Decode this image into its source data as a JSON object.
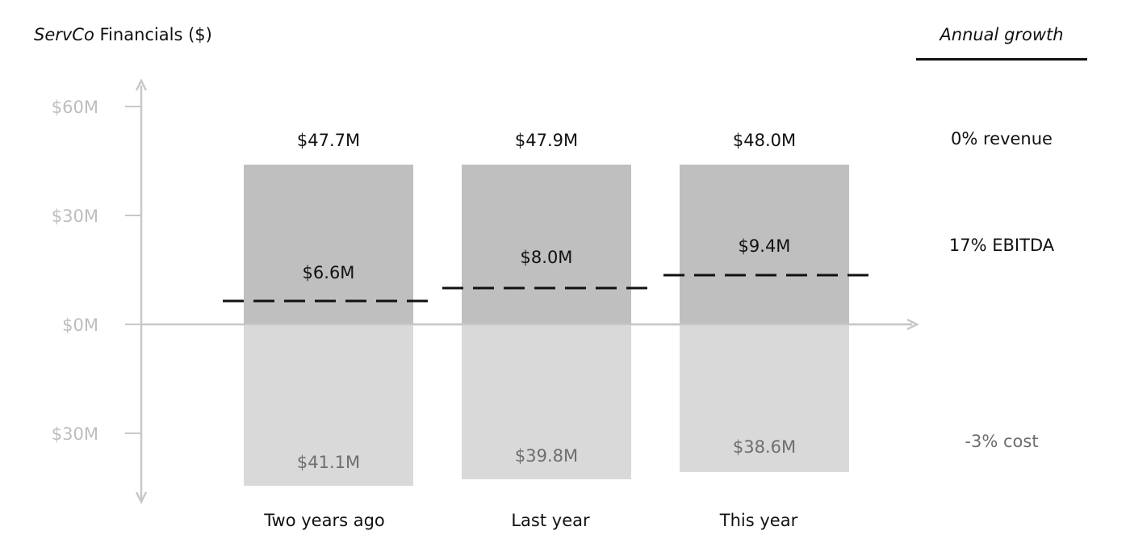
{
  "header": {
    "title_brand": "ServCo",
    "title_rest": " Financials  ($)"
  },
  "growth": {
    "title": "Annual growth",
    "items": [
      {
        "label": "0% revenue",
        "tone": "dark"
      },
      {
        "label": "17% EBITDA",
        "tone": "dark"
      },
      {
        "label": "-3% cost",
        "tone": "muted"
      }
    ]
  },
  "colors": {
    "revenue": "#bfbfbf",
    "cost": "#d9d9d9",
    "axis": "#c8c8c8",
    "text": "#111111",
    "muted": "#6e6e6e",
    "tick": "#bdbdbd"
  },
  "chart_data": {
    "type": "bar",
    "title": "ServCo Financials  ($)",
    "categories": [
      "Two years ago",
      "Last year",
      "This year"
    ],
    "series": [
      {
        "name": "revenue",
        "values": [
          47.7,
          47.9,
          48.0
        ],
        "labels": [
          "$47.7M",
          "$47.9M",
          "$48.0M"
        ]
      },
      {
        "name": "EBITDA",
        "values": [
          6.6,
          8.0,
          9.4
        ],
        "labels": [
          "$6.6M",
          "$8.0M",
          "$9.4M"
        ],
        "style": "dashed-line"
      },
      {
        "name": "cost",
        "values": [
          -41.1,
          -39.8,
          -38.6
        ],
        "labels": [
          "$41.1M",
          "$39.8M",
          "$38.6M"
        ]
      }
    ],
    "yticks": [
      60,
      30,
      0,
      -30
    ],
    "ytick_labels": [
      "$60M",
      "$30M",
      "$0M",
      "$30M"
    ],
    "ylim": [
      -48,
      65
    ],
    "grid": false,
    "xlabel": "",
    "ylabel": ""
  }
}
